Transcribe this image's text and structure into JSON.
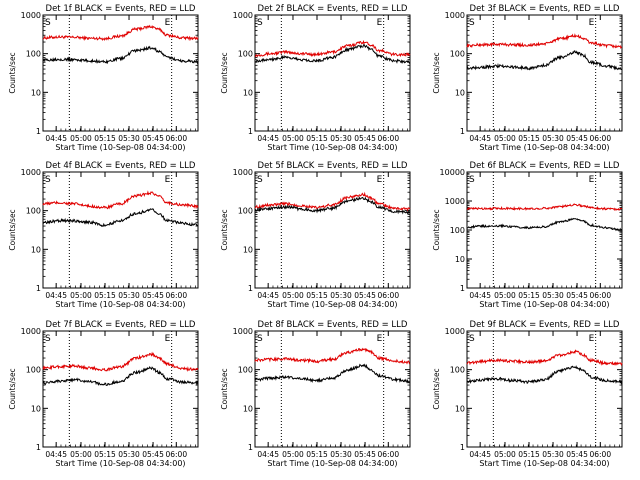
{
  "colors": {
    "events": "#000000",
    "lld": "#e00000",
    "axis": "#000000"
  },
  "chart_data": [
    {
      "type": "line",
      "title": "Det 1f BLACK = Events, RED = LLD",
      "xlabel": "Start Time (10-Sep-08 04:34:00)",
      "ylabel": "Counts/sec",
      "yscale": "log",
      "ylim": [
        1,
        1000
      ],
      "yticks": [
        "1",
        "10",
        "100",
        "1000"
      ],
      "xticks": [
        "04:45",
        "05:00",
        "05:15",
        "05:30",
        "05:45",
        "06:00"
      ],
      "markers": [
        "S",
        "E"
      ],
      "series": [
        {
          "color": "#e00000",
          "x": [
            0,
            0.1,
            0.2,
            0.3,
            0.4,
            0.5,
            0.6,
            0.7,
            0.75,
            0.8,
            0.9,
            1.0
          ],
          "values": [
            255,
            270,
            265,
            250,
            245,
            285,
            430,
            500,
            420,
            300,
            255,
            250
          ]
        },
        {
          "color": "#000000",
          "x": [
            0,
            0.1,
            0.2,
            0.3,
            0.4,
            0.5,
            0.6,
            0.7,
            0.75,
            0.8,
            0.9,
            1.0
          ],
          "values": [
            68,
            72,
            70,
            65,
            62,
            75,
            120,
            140,
            115,
            80,
            65,
            62
          ]
        }
      ]
    },
    {
      "type": "line",
      "title": "Det 2f BLACK = Events, RED = LLD",
      "xlabel": "Start Time (10-Sep-08 04:34:00)",
      "ylabel": "Counts/sec",
      "yscale": "log",
      "ylim": [
        1,
        1000
      ],
      "yticks": [
        "1",
        "10",
        "100",
        "1000"
      ],
      "xticks": [
        "04:45",
        "05:00",
        "05:15",
        "05:30",
        "05:45",
        "06:00"
      ],
      "markers": [
        "S",
        "E"
      ],
      "series": [
        {
          "color": "#e00000",
          "x": [
            0,
            0.1,
            0.2,
            0.3,
            0.4,
            0.5,
            0.6,
            0.7,
            0.75,
            0.8,
            0.9,
            1.0
          ],
          "values": [
            90,
            100,
            110,
            100,
            95,
            110,
            160,
            200,
            170,
            120,
            95,
            95
          ]
        },
        {
          "color": "#000000",
          "x": [
            0,
            0.1,
            0.2,
            0.3,
            0.4,
            0.5,
            0.6,
            0.7,
            0.75,
            0.8,
            0.9,
            1.0
          ],
          "values": [
            65,
            72,
            80,
            70,
            65,
            80,
            130,
            160,
            130,
            85,
            65,
            60
          ]
        }
      ]
    },
    {
      "type": "line",
      "title": "Det 3f BLACK = Events, RED = LLD",
      "xlabel": "Start Time (10-Sep-08 04:34:00)",
      "ylabel": "Counts/sec",
      "yscale": "log",
      "ylim": [
        1,
        1000
      ],
      "yticks": [
        "1",
        "10",
        "100",
        "1000"
      ],
      "xticks": [
        "04:45",
        "05:00",
        "05:15",
        "05:30",
        "05:45",
        "06:00"
      ],
      "markers": [
        "S",
        "E"
      ],
      "series": [
        {
          "color": "#e00000",
          "x": [
            0,
            0.1,
            0.2,
            0.3,
            0.4,
            0.5,
            0.6,
            0.7,
            0.75,
            0.8,
            0.9,
            1.0
          ],
          "values": [
            160,
            170,
            175,
            170,
            165,
            180,
            240,
            290,
            250,
            190,
            160,
            150
          ]
        },
        {
          "color": "#000000",
          "x": [
            0,
            0.1,
            0.2,
            0.3,
            0.4,
            0.5,
            0.6,
            0.7,
            0.75,
            0.8,
            0.9,
            1.0
          ],
          "values": [
            42,
            45,
            48,
            45,
            42,
            50,
            80,
            110,
            90,
            60,
            48,
            40
          ]
        }
      ]
    },
    {
      "type": "line",
      "title": "Det 4f BLACK = Events, RED = LLD",
      "xlabel": "Start Time (10-Sep-08 04:34:00)",
      "ylabel": "Counts/sec",
      "yscale": "log",
      "ylim": [
        1,
        1000
      ],
      "yticks": [
        "1",
        "10",
        "100",
        "1000"
      ],
      "xticks": [
        "04:45",
        "05:00",
        "05:15",
        "05:30",
        "05:45",
        "06:00"
      ],
      "markers": [
        "S",
        "E"
      ],
      "series": [
        {
          "color": "#e00000",
          "x": [
            0,
            0.1,
            0.2,
            0.3,
            0.4,
            0.5,
            0.6,
            0.7,
            0.75,
            0.8,
            0.9,
            1.0
          ],
          "values": [
            150,
            160,
            150,
            130,
            120,
            150,
            240,
            290,
            230,
            160,
            140,
            130
          ]
        },
        {
          "color": "#000000",
          "x": [
            0,
            0.1,
            0.2,
            0.3,
            0.4,
            0.5,
            0.6,
            0.7,
            0.75,
            0.8,
            0.9,
            1.0
          ],
          "values": [
            48,
            55,
            55,
            50,
            42,
            55,
            85,
            105,
            85,
            55,
            48,
            42
          ]
        }
      ]
    },
    {
      "type": "line",
      "title": "Det 5f BLACK = Events, RED = LLD",
      "xlabel": "Start Time (10-Sep-08 04:34:00)",
      "ylabel": "Counts/sec",
      "yscale": "log",
      "ylim": [
        1,
        1000
      ],
      "yticks": [
        "1",
        "10",
        "100",
        "1000"
      ],
      "xticks": [
        "04:45",
        "05:00",
        "05:15",
        "05:30",
        "05:45",
        "06:00"
      ],
      "markers": [
        "S",
        "E"
      ],
      "series": [
        {
          "color": "#e00000",
          "x": [
            0,
            0.1,
            0.2,
            0.3,
            0.4,
            0.5,
            0.6,
            0.7,
            0.75,
            0.8,
            0.9,
            1.0
          ],
          "values": [
            125,
            140,
            150,
            135,
            120,
            140,
            220,
            260,
            210,
            150,
            115,
            110
          ]
        },
        {
          "color": "#000000",
          "x": [
            0,
            0.1,
            0.2,
            0.3,
            0.4,
            0.5,
            0.6,
            0.7,
            0.75,
            0.8,
            0.9,
            1.0
          ],
          "values": [
            105,
            115,
            125,
            110,
            100,
            115,
            180,
            210,
            170,
            120,
            95,
            90
          ]
        }
      ]
    },
    {
      "type": "line",
      "title": "Det 6f BLACK = Events, RED = LLD",
      "xlabel": "Start Time (10-Sep-08 04:34:00)",
      "ylabel": "Counts/sec",
      "yscale": "log",
      "ylim": [
        1,
        10000
      ],
      "yticks": [
        "1",
        "10",
        "100",
        "1000",
        "10000"
      ],
      "xticks": [
        "04:45",
        "05:00",
        "05:15",
        "05:30",
        "05:45",
        "06:00"
      ],
      "markers": [
        "S",
        "E"
      ],
      "series": [
        {
          "color": "#e00000",
          "x": [
            0,
            0.1,
            0.2,
            0.3,
            0.4,
            0.5,
            0.6,
            0.7,
            0.75,
            0.8,
            0.9,
            1.0
          ],
          "values": [
            540,
            550,
            560,
            550,
            540,
            560,
            640,
            750,
            680,
            590,
            540,
            520
          ]
        },
        {
          "color": "#000000",
          "x": [
            0,
            0.1,
            0.2,
            0.3,
            0.4,
            0.5,
            0.6,
            0.7,
            0.75,
            0.8,
            0.9,
            1.0
          ],
          "values": [
            125,
            135,
            140,
            130,
            120,
            130,
            190,
            240,
            200,
            145,
            120,
            100
          ]
        }
      ]
    },
    {
      "type": "line",
      "title": "Det 7f BLACK = Events, RED = LLD",
      "xlabel": "Start Time (10-Sep-08 04:34:00)",
      "ylabel": "Counts/sec",
      "yscale": "log",
      "ylim": [
        1,
        1000
      ],
      "yticks": [
        "1",
        "10",
        "100",
        "1000"
      ],
      "xticks": [
        "04:45",
        "05:00",
        "05:15",
        "05:30",
        "05:45",
        "06:00"
      ],
      "markers": [
        "S",
        "E"
      ],
      "series": [
        {
          "color": "#e00000",
          "x": [
            0,
            0.1,
            0.2,
            0.3,
            0.4,
            0.5,
            0.6,
            0.7,
            0.75,
            0.8,
            0.9,
            1.0
          ],
          "values": [
            110,
            120,
            125,
            110,
            100,
            120,
            200,
            250,
            200,
            140,
            105,
            100
          ]
        },
        {
          "color": "#000000",
          "x": [
            0,
            0.1,
            0.2,
            0.3,
            0.4,
            0.5,
            0.6,
            0.7,
            0.75,
            0.8,
            0.9,
            1.0
          ],
          "values": [
            45,
            50,
            55,
            48,
            42,
            50,
            85,
            110,
            85,
            58,
            48,
            45
          ]
        }
      ]
    },
    {
      "type": "line",
      "title": "Det 8f BLACK = Events, RED = LLD",
      "xlabel": "Start Time (10-Sep-08 04:34:00)",
      "ylabel": "Counts/sec",
      "yscale": "log",
      "ylim": [
        1,
        1000
      ],
      "yticks": [
        "1",
        "10",
        "100",
        "1000"
      ],
      "xticks": [
        "04:45",
        "05:00",
        "05:15",
        "05:30",
        "05:45",
        "06:00"
      ],
      "markers": [
        "S",
        "E"
      ],
      "series": [
        {
          "color": "#e00000",
          "x": [
            0,
            0.1,
            0.2,
            0.3,
            0.4,
            0.5,
            0.6,
            0.7,
            0.75,
            0.8,
            0.9,
            1.0
          ],
          "values": [
            175,
            185,
            190,
            175,
            165,
            185,
            280,
            340,
            280,
            200,
            165,
            155
          ]
        },
        {
          "color": "#000000",
          "x": [
            0,
            0.1,
            0.2,
            0.3,
            0.4,
            0.5,
            0.6,
            0.7,
            0.75,
            0.8,
            0.9,
            1.0
          ],
          "values": [
            55,
            60,
            65,
            58,
            52,
            60,
            100,
            130,
            100,
            70,
            55,
            50
          ]
        }
      ]
    },
    {
      "type": "line",
      "title": "Det 9f BLACK = Events, RED = LLD",
      "xlabel": "Start Time (10-Sep-08 04:34:00)",
      "ylabel": "Counts/sec",
      "yscale": "log",
      "ylim": [
        1,
        1000
      ],
      "yticks": [
        "1",
        "10",
        "100",
        "1000"
      ],
      "xticks": [
        "04:45",
        "05:00",
        "05:15",
        "05:30",
        "05:45",
        "06:00"
      ],
      "markers": [
        "S",
        "E"
      ],
      "series": [
        {
          "color": "#e00000",
          "x": [
            0,
            0.1,
            0.2,
            0.3,
            0.4,
            0.5,
            0.6,
            0.7,
            0.75,
            0.8,
            0.9,
            1.0
          ],
          "values": [
            150,
            165,
            175,
            165,
            155,
            170,
            240,
            290,
            240,
            175,
            145,
            140
          ]
        },
        {
          "color": "#000000",
          "x": [
            0,
            0.1,
            0.2,
            0.3,
            0.4,
            0.5,
            0.6,
            0.7,
            0.75,
            0.8,
            0.9,
            1.0
          ],
          "values": [
            50,
            55,
            58,
            52,
            48,
            55,
            95,
            120,
            95,
            65,
            52,
            48
          ]
        }
      ]
    }
  ]
}
